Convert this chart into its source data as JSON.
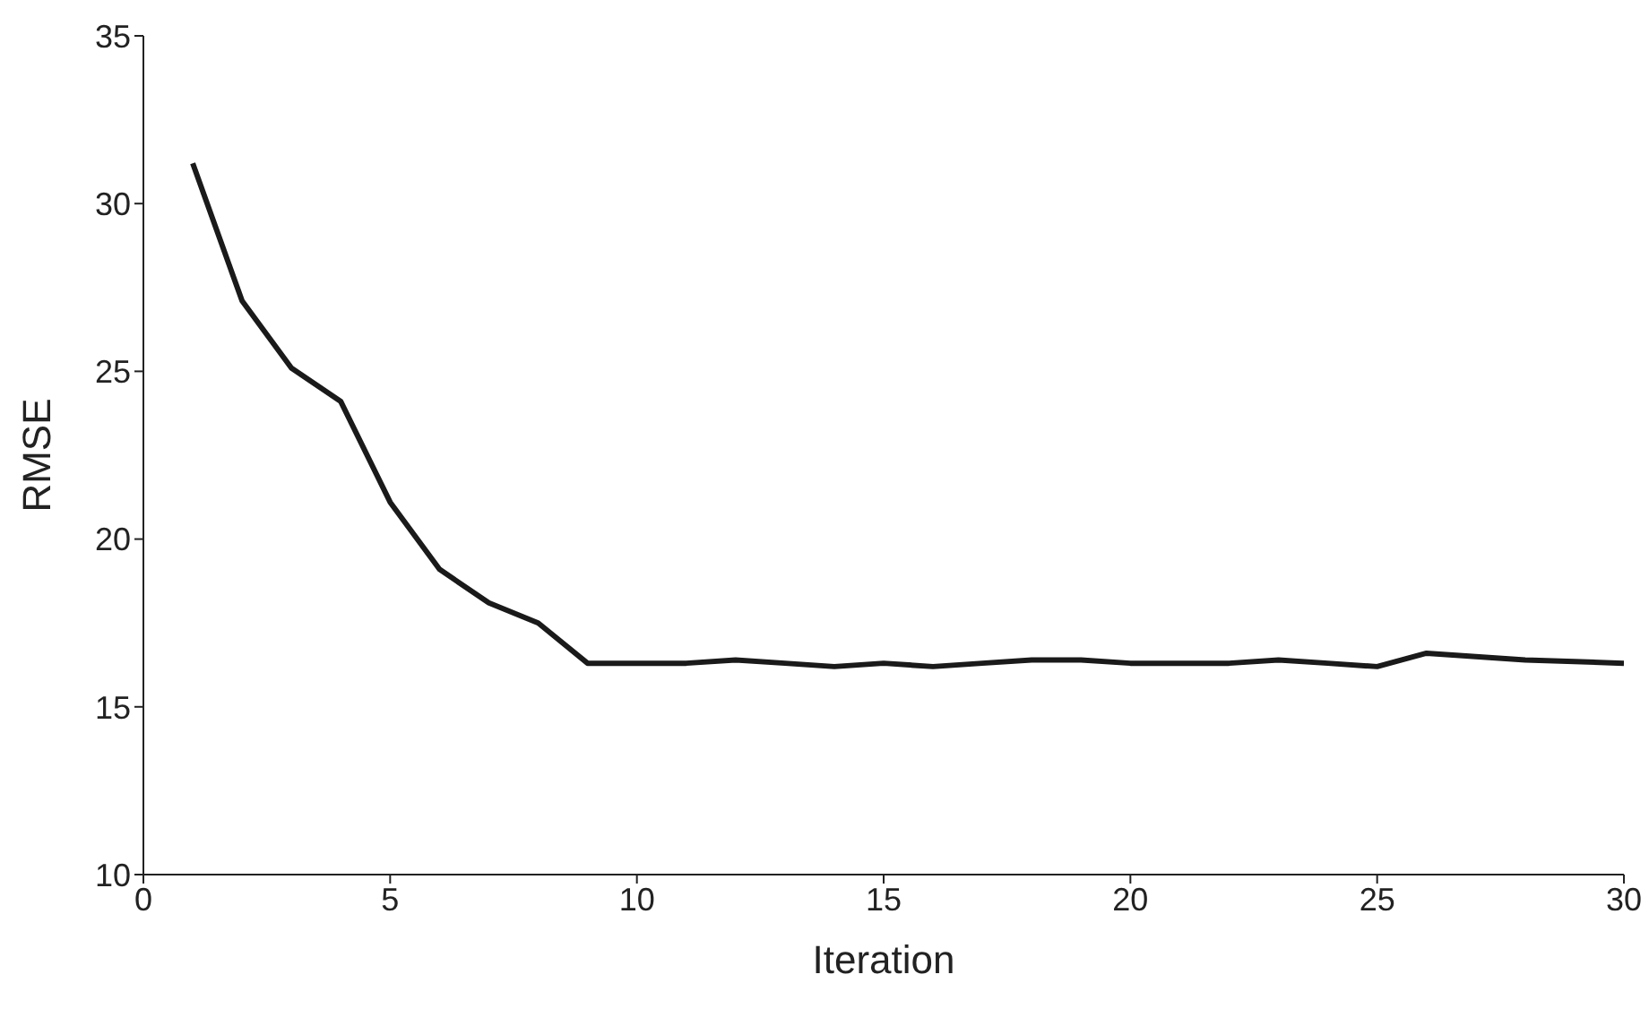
{
  "chart_data": {
    "type": "line",
    "xlabel": "Iteration",
    "ylabel": "RMSE",
    "x": [
      1,
      2,
      3,
      4,
      5,
      6,
      7,
      8,
      9,
      10,
      11,
      12,
      13,
      14,
      15,
      16,
      17,
      18,
      19,
      20,
      21,
      22,
      23,
      24,
      25,
      26,
      27,
      28,
      29,
      30
    ],
    "series": [
      {
        "color": "#1a1a1a",
        "values": [
          31.2,
          27.1,
          25.1,
          24.1,
          21.1,
          19.1,
          18.1,
          17.5,
          16.3,
          16.3,
          16.3,
          16.4,
          16.3,
          16.2,
          16.3,
          16.2,
          16.3,
          16.4,
          16.4,
          16.3,
          16.3,
          16.3,
          16.4,
          16.3,
          16.2,
          16.6,
          16.5,
          16.4,
          16.35,
          16.3
        ]
      }
    ],
    "xlim": [
      0,
      30
    ],
    "xticks": [
      0,
      5,
      10,
      15,
      20,
      25,
      30
    ],
    "ylim": [
      10,
      35
    ],
    "yticks": [
      10,
      15,
      20,
      25,
      30,
      35
    ],
    "marker": "none",
    "line_style": "solid"
  }
}
